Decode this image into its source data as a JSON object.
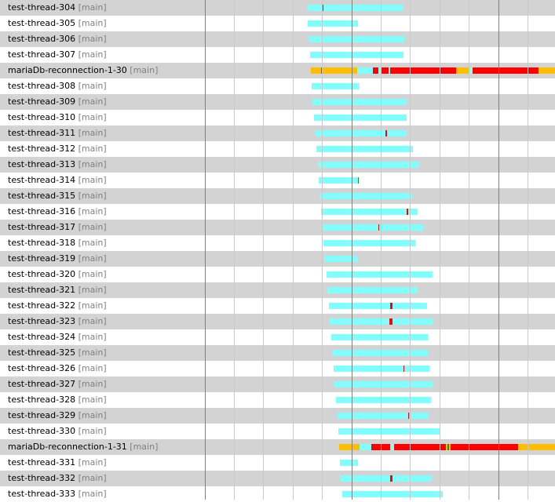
{
  "threads": [
    {
      "name": "test-thread-304",
      "group": "[main]"
    },
    {
      "name": "test-thread-305",
      "group": "[main]"
    },
    {
      "name": "test-thread-306",
      "group": "[main]"
    },
    {
      "name": "test-thread-307",
      "group": "[main]"
    },
    {
      "name": "mariaDb-reconnection-1-30",
      "group": "[main]"
    },
    {
      "name": "test-thread-308",
      "group": "[main]"
    },
    {
      "name": "test-thread-309",
      "group": "[main]"
    },
    {
      "name": "test-thread-310",
      "group": "[main]"
    },
    {
      "name": "test-thread-311",
      "group": "[main]"
    },
    {
      "name": "test-thread-312",
      "group": "[main]"
    },
    {
      "name": "test-thread-313",
      "group": "[main]"
    },
    {
      "name": "test-thread-314",
      "group": "[main]"
    },
    {
      "name": "test-thread-315",
      "group": "[main]"
    },
    {
      "name": "test-thread-316",
      "group": "[main]"
    },
    {
      "name": "test-thread-317",
      "group": "[main]"
    },
    {
      "name": "test-thread-318",
      "group": "[main]"
    },
    {
      "name": "test-thread-319",
      "group": "[main]"
    },
    {
      "name": "test-thread-320",
      "group": "[main]"
    },
    {
      "name": "test-thread-321",
      "group": "[main]"
    },
    {
      "name": "test-thread-322",
      "group": "[main]"
    },
    {
      "name": "test-thread-323",
      "group": "[main]"
    },
    {
      "name": "test-thread-324",
      "group": "[main]"
    },
    {
      "name": "test-thread-325",
      "group": "[main]"
    },
    {
      "name": "test-thread-326",
      "group": "[main]"
    },
    {
      "name": "test-thread-327",
      "group": "[main]"
    },
    {
      "name": "test-thread-328",
      "group": "[main]"
    },
    {
      "name": "test-thread-329",
      "group": "[main]"
    },
    {
      "name": "test-thread-330",
      "group": "[main]"
    },
    {
      "name": "mariaDb-reconnection-1-31",
      "group": "[main]"
    },
    {
      "name": "test-thread-331",
      "group": "[main]"
    },
    {
      "name": "test-thread-332",
      "group": "[main]"
    },
    {
      "name": "test-thread-333",
      "group": "[main]"
    }
  ],
  "state_colors": {
    "running": "#80ffff",
    "blocked": "#ff0000",
    "waiting": "#ffbf00",
    "marker": "#228b22"
  },
  "colors": {
    "row_even": "#d3d3d3",
    "row_odd": "#ffffff",
    "grid_minor": "#c8c8c8",
    "grid_major": "#808080",
    "group_text": "#808080"
  }
}
